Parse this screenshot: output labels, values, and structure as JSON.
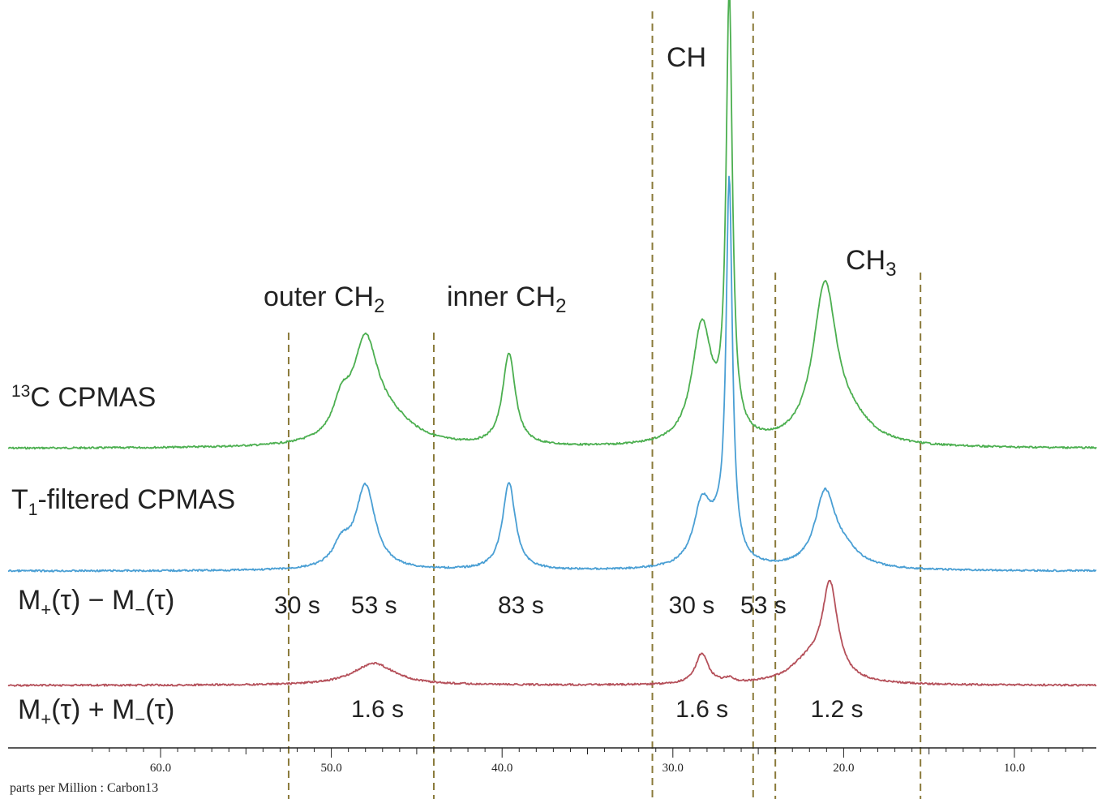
{
  "chart_data": {
    "type": "line",
    "xlabel": "parts per Million : Carbon13",
    "x_reversed": true,
    "xlim": [
      65.0,
      2.0
    ],
    "x_tick_labels": [
      "60.0",
      "50.0",
      "40.0",
      "30.0",
      "20.0",
      "10.0"
    ],
    "x_tick_values": [
      60,
      50,
      40,
      30,
      20,
      10
    ],
    "region_boundaries_ppm": [
      52.5,
      44.0,
      31.2,
      25.3,
      24.0,
      15.5
    ],
    "region_labels": [
      {
        "text": "outer CH",
        "sub": "2",
        "ppm": 48.0
      },
      {
        "text": "inner CH",
        "sub": "2",
        "ppm": 39.5
      },
      {
        "text": "CH",
        "sub": "",
        "ppm": 28.0
      },
      {
        "text": "CH",
        "sub": "3",
        "ppm": 19.0
      }
    ],
    "series": [
      {
        "name_pre": "",
        "name_sup": "13",
        "name_main": "C CPMAS",
        "name_sub": "",
        "name_rest": "",
        "color": "#4caf50",
        "baseline": 553,
        "peaks": [
          {
            "ppm": 49.4,
            "h": 0.07,
            "w": 0.6
          },
          {
            "ppm": 48.0,
            "h": 0.22,
            "w": 0.9
          },
          {
            "ppm": 46.5,
            "h": 0.05,
            "w": 1.8
          },
          {
            "ppm": 39.6,
            "h": 0.21,
            "w": 0.45
          },
          {
            "ppm": 28.3,
            "h": 0.27,
            "w": 0.7
          },
          {
            "ppm": 26.7,
            "h": 1.0,
            "w": 0.22
          },
          {
            "ppm": 21.1,
            "h": 0.36,
            "w": 0.85
          },
          {
            "ppm": 19.5,
            "h": 0.04,
            "w": 1.4
          }
        ]
      },
      {
        "name_pre": "T",
        "name_sup": "",
        "name_main": "",
        "name_sub": "1",
        "name_rest": "-filtered CPMAS",
        "color": "#4a9fd4",
        "baseline": 704,
        "peaks": [
          {
            "ppm": 49.4,
            "h": 0.05,
            "w": 0.6
          },
          {
            "ppm": 48.0,
            "h": 0.19,
            "w": 0.7
          },
          {
            "ppm": 39.6,
            "h": 0.2,
            "w": 0.45
          },
          {
            "ppm": 28.3,
            "h": 0.13,
            "w": 0.6
          },
          {
            "ppm": 27.4,
            "h": 0.06,
            "w": 0.8
          },
          {
            "ppm": 26.7,
            "h": 0.85,
            "w": 0.22
          },
          {
            "ppm": 21.1,
            "h": 0.16,
            "w": 0.7
          },
          {
            "ppm": 20.1,
            "h": 0.04,
            "w": 1.2
          }
        ]
      },
      {
        "name_pre": "",
        "name_sup": "",
        "name_main": "",
        "name_sub": "",
        "name_rest": "",
        "color": "#b5505a",
        "baseline": 845,
        "peaks": [
          {
            "ppm": 47.5,
            "h": 0.05,
            "w": 1.5
          },
          {
            "ppm": 28.3,
            "h": 0.07,
            "w": 0.45
          },
          {
            "ppm": 26.7,
            "h": 0.01,
            "w": 0.3
          },
          {
            "ppm": 20.8,
            "h": 0.21,
            "w": 0.55
          },
          {
            "ppm": 22.0,
            "h": 0.05,
            "w": 1.4
          }
        ]
      }
    ],
    "row_labels": [
      {
        "m": "M",
        "s1": "+",
        "t1": "(τ) − M",
        "s2": "−",
        "t2": "(τ)"
      },
      {
        "m": "M",
        "s1": "+",
        "t1": "(τ) + M",
        "s2": "−",
        "t2": "(τ)"
      }
    ],
    "annotations": [
      {
        "text": "30 s",
        "ppm": 52.0,
        "row": 0
      },
      {
        "text": "53 s",
        "ppm": 47.5,
        "row": 0
      },
      {
        "text": "83 s",
        "ppm": 38.9,
        "row": 0
      },
      {
        "text": "30 s",
        "ppm": 28.9,
        "row": 0
      },
      {
        "text": "53 s",
        "ppm": 24.7,
        "row": 0
      },
      {
        "text": "1.6 s",
        "ppm": 47.3,
        "row": 1
      },
      {
        "text": "1.6 s",
        "ppm": 28.3,
        "row": 1
      },
      {
        "text": "1.2 s",
        "ppm": 20.4,
        "row": 1
      }
    ]
  }
}
